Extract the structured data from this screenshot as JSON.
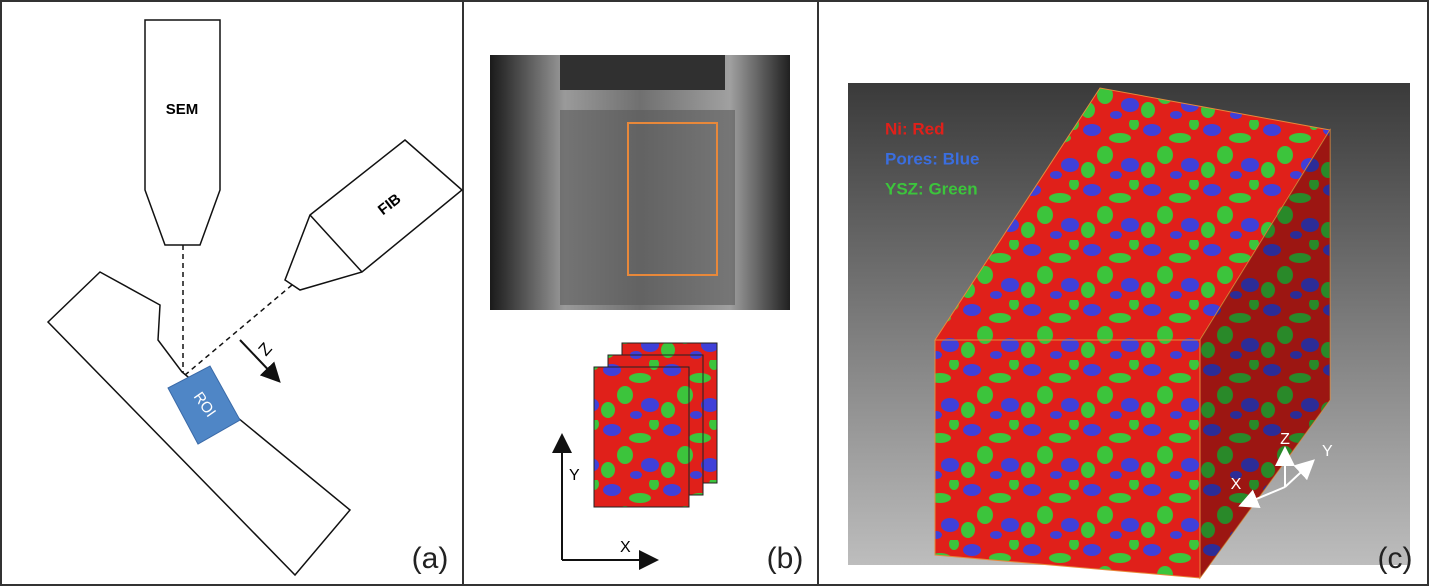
{
  "panel_a": {
    "label": "(a)",
    "sem": "SEM",
    "fib": "FIB",
    "z_axis": "Z",
    "roi": "ROI"
  },
  "panel_b": {
    "label": "(b)",
    "x_axis": "X",
    "y_axis": "Y"
  },
  "panel_c": {
    "label": "(c)",
    "legend": [
      "Ni: Red",
      "Pores: Blue",
      "YSZ: Green"
    ],
    "x_axis": "X",
    "y_axis": "Y",
    "z_axis": "Z"
  }
}
